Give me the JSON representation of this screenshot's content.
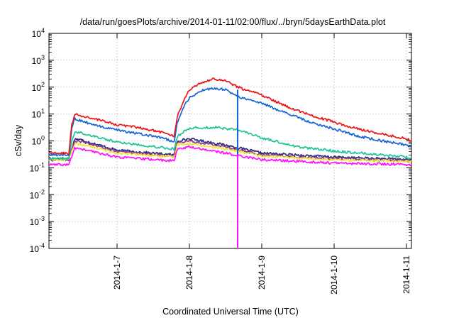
{
  "chart_data": {
    "type": "line",
    "title": "/data/run/goesPlots/archive/2014-01-11/02:00/flux/../bryn/5daysEarthData.plot",
    "xlabel": "Coordinated Universal Time (UTC)",
    "ylabel": "cSv/day",
    "yscale": "log",
    "ylim": [
      0.0001,
      10000
    ],
    "xlim": [
      "2014-01-06 00:00",
      "2014-01-11 02:00"
    ],
    "y_ticks": [
      {
        "base": "10",
        "exp": "4"
      },
      {
        "base": "10",
        "exp": "3"
      },
      {
        "base": "10",
        "exp": "2"
      },
      {
        "base": "10",
        "exp": "1"
      },
      {
        "base": "10",
        "exp": "0"
      },
      {
        "base": "10",
        "exp": "-1"
      },
      {
        "base": "10",
        "exp": "-2"
      },
      {
        "base": "10",
        "exp": "-3"
      },
      {
        "base": "10",
        "exp": "-4"
      }
    ],
    "x_ticks": [
      "2014-1-7",
      "2014-1-8",
      "2014-1-9",
      "2014-1-10",
      "2014-1-11"
    ],
    "grid": true,
    "legend": "none",
    "colors": {
      "red": "#e8161b",
      "blue": "#1565d8",
      "teal": "#1fc29a",
      "navy": "#2b2a78",
      "purple": "#8a3a8f",
      "yellow": "#f3e23a",
      "magenta": "#ff10ff"
    },
    "series": [
      {
        "color": "red",
        "x": [
          "2014-01-06 00:00",
          "2014-01-06 08:00",
          "2014-01-06 09:00",
          "2014-01-06 10:00",
          "2014-01-06 11:00",
          "2014-01-06 18:00",
          "2014-01-07 00:00",
          "2014-01-07 08:00",
          "2014-01-07 16:00",
          "2014-01-07 19:00",
          "2014-01-07 20:00",
          "2014-01-07 22:00",
          "2014-01-08 00:00",
          "2014-01-08 04:00",
          "2014-01-08 08:00",
          "2014-01-08 12:00",
          "2014-01-08 16:00",
          "2014-01-09 00:00",
          "2014-01-09 08:00",
          "2014-01-09 16:00",
          "2014-01-10 00:00",
          "2014-01-10 08:00",
          "2014-01-10 16:00",
          "2014-01-11 00:00",
          "2014-01-11 02:00"
        ],
        "values": [
          0.35,
          0.35,
          4,
          10,
          9,
          6,
          4,
          3,
          2,
          1.5,
          8,
          30,
          80,
          150,
          200,
          180,
          100,
          50,
          20,
          9,
          5,
          2.8,
          1.8,
          1.2,
          1.0
        ]
      },
      {
        "color": "blue",
        "x": [
          "2014-01-06 00:00",
          "2014-01-06 08:00",
          "2014-01-06 09:00",
          "2014-01-06 10:00",
          "2014-01-06 11:00",
          "2014-01-06 18:00",
          "2014-01-07 00:00",
          "2014-01-07 08:00",
          "2014-01-07 16:00",
          "2014-01-07 19:00",
          "2014-01-07 20:00",
          "2014-01-07 22:00",
          "2014-01-08 00:00",
          "2014-01-08 04:00",
          "2014-01-08 08:00",
          "2014-01-08 12:00",
          "2014-01-08 16:00",
          "2014-01-09 00:00",
          "2014-01-09 08:00",
          "2014-01-09 16:00",
          "2014-01-10 00:00",
          "2014-01-10 08:00",
          "2014-01-10 16:00",
          "2014-01-11 00:00",
          "2014-01-11 02:00"
        ],
        "values": [
          0.3,
          0.3,
          3,
          7,
          6,
          3.5,
          2.5,
          1.8,
          1.2,
          0.9,
          5,
          18,
          40,
          75,
          90,
          80,
          45,
          25,
          11,
          5,
          2.8,
          1.5,
          1.0,
          0.7,
          0.6
        ]
      },
      {
        "color": "teal",
        "x": [
          "2014-01-06 00:00",
          "2014-01-06 08:00",
          "2014-01-06 09:00",
          "2014-01-06 10:00",
          "2014-01-06 12:00",
          "2014-01-07 00:00",
          "2014-01-07 19:00",
          "2014-01-07 20:00",
          "2014-01-08 00:00",
          "2014-01-08 08:00",
          "2014-01-08 16:00",
          "2014-01-09 00:00",
          "2014-01-09 12:00",
          "2014-01-10 00:00",
          "2014-01-10 12:00",
          "2014-01-11 00:00",
          "2014-01-11 02:00"
        ],
        "values": [
          0.22,
          0.22,
          1,
          2.2,
          2,
          0.9,
          0.5,
          1.5,
          3,
          3.2,
          2.6,
          1.3,
          0.6,
          0.42,
          0.33,
          0.25,
          0.22
        ]
      },
      {
        "color": "navy",
        "x": [
          "2014-01-06 00:00",
          "2014-01-06 08:00",
          "2014-01-06 10:00",
          "2014-01-06 12:00",
          "2014-01-07 00:00",
          "2014-01-07 19:00",
          "2014-01-07 20:00",
          "2014-01-08 00:00",
          "2014-01-08 12:00",
          "2014-01-09 00:00",
          "2014-01-10 00:00",
          "2014-01-11 02:00"
        ],
        "values": [
          0.22,
          0.22,
          1.2,
          1.1,
          0.45,
          0.3,
          1,
          1.2,
          0.7,
          0.35,
          0.25,
          0.2
        ]
      },
      {
        "color": "purple",
        "x": [
          "2014-01-06 00:00",
          "2014-01-06 08:00",
          "2014-01-06 10:00",
          "2014-01-06 12:00",
          "2014-01-07 00:00",
          "2014-01-07 19:00",
          "2014-01-07 20:00",
          "2014-01-08 00:00",
          "2014-01-08 12:00",
          "2014-01-09 00:00",
          "2014-01-10 00:00",
          "2014-01-11 02:00"
        ],
        "values": [
          0.2,
          0.2,
          1,
          0.95,
          0.4,
          0.27,
          0.9,
          1.0,
          0.6,
          0.3,
          0.22,
          0.18
        ]
      },
      {
        "color": "yellow",
        "x": [
          "2014-01-06 00:00",
          "2014-01-06 08:00",
          "2014-01-06 10:00",
          "2014-01-06 12:00",
          "2014-01-07 00:00",
          "2014-01-07 19:00",
          "2014-01-07 20:00",
          "2014-01-08 00:00",
          "2014-01-08 12:00",
          "2014-01-09 00:00",
          "2014-01-10 00:00",
          "2014-01-11 02:00"
        ],
        "values": [
          0.2,
          0.2,
          0.8,
          0.75,
          0.35,
          0.25,
          0.75,
          0.8,
          0.5,
          0.27,
          0.2,
          0.17
        ]
      },
      {
        "color": "magenta",
        "x": [
          "2014-01-06 00:00",
          "2014-01-06 08:00",
          "2014-01-06 10:00",
          "2014-01-06 12:00",
          "2014-01-07 00:00",
          "2014-01-07 19:00",
          "2014-01-07 20:00",
          "2014-01-08 00:00",
          "2014-01-08 12:00",
          "2014-01-09 00:00",
          "2014-01-10 00:00",
          "2014-01-11 02:00"
        ],
        "values": [
          0.13,
          0.13,
          0.55,
          0.5,
          0.25,
          0.18,
          0.5,
          0.6,
          0.35,
          0.2,
          0.15,
          0.13
        ]
      }
    ],
    "annotations": [
      {
        "type": "vertical-drop",
        "color": "blue",
        "x": "2014-01-08 16:00",
        "from": 80,
        "to": 0.3
      },
      {
        "type": "vertical-drop",
        "color": "magenta",
        "x": "2014-01-08 16:00",
        "from": 0.3,
        "to": 0.0001
      }
    ]
  }
}
